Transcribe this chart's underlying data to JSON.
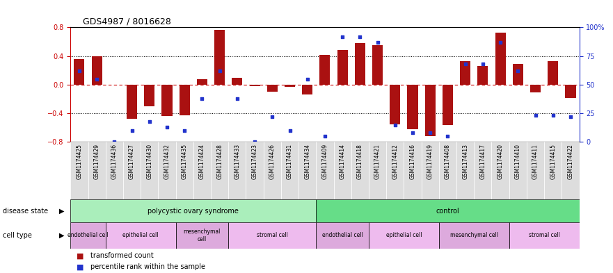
{
  "title": "GDS4987 / 8016628",
  "samples": [
    "GSM1174425",
    "GSM1174429",
    "GSM1174436",
    "GSM1174427",
    "GSM1174430",
    "GSM1174432",
    "GSM1174435",
    "GSM1174424",
    "GSM1174428",
    "GSM1174433",
    "GSM1174423",
    "GSM1174426",
    "GSM1174431",
    "GSM1174434",
    "GSM1174409",
    "GSM1174414",
    "GSM1174418",
    "GSM1174421",
    "GSM1174412",
    "GSM1174416",
    "GSM1174419",
    "GSM1174408",
    "GSM1174413",
    "GSM1174417",
    "GSM1174420",
    "GSM1174410",
    "GSM1174411",
    "GSM1174415",
    "GSM1174422"
  ],
  "bar_values": [
    0.36,
    0.4,
    0.0,
    -0.48,
    -0.3,
    -0.44,
    -0.43,
    0.08,
    0.76,
    0.1,
    -0.02,
    -0.1,
    -0.03,
    -0.14,
    0.42,
    0.48,
    0.58,
    0.55,
    -0.55,
    -0.62,
    -0.72,
    -0.56,
    0.33,
    0.26,
    0.73,
    0.29,
    -0.11,
    0.33,
    -0.19
  ],
  "scatter_values": [
    62,
    55,
    0,
    10,
    18,
    13,
    10,
    38,
    62,
    38,
    0,
    22,
    10,
    55,
    5,
    92,
    92,
    87,
    15,
    8,
    8,
    5,
    68,
    68,
    87,
    62,
    23,
    23,
    22
  ],
  "bar_color": "#aa1111",
  "scatter_color": "#2233cc",
  "ylim": [
    -0.8,
    0.8
  ],
  "yticks_left": [
    -0.8,
    -0.4,
    0.0,
    0.4,
    0.8
  ],
  "yticks_right": [
    0,
    25,
    50,
    75,
    100
  ],
  "disease_state_groups": [
    {
      "label": "polycystic ovary syndrome",
      "start": 0,
      "end": 14,
      "color": "#aaeebb"
    },
    {
      "label": "control",
      "start": 14,
      "end": 29,
      "color": "#66dd88"
    }
  ],
  "cell_type_groups": [
    {
      "label": "endothelial cell",
      "start": 0,
      "end": 2,
      "color": "#ddaadd"
    },
    {
      "label": "epithelial cell",
      "start": 2,
      "end": 6,
      "color": "#eebbee"
    },
    {
      "label": "mesenchymal\ncell",
      "start": 6,
      "end": 9,
      "color": "#ddaadd"
    },
    {
      "label": "stromal cell",
      "start": 9,
      "end": 14,
      "color": "#eebbee"
    },
    {
      "label": "endothelial cell",
      "start": 14,
      "end": 17,
      "color": "#ddaadd"
    },
    {
      "label": "epithelial cell",
      "start": 17,
      "end": 21,
      "color": "#eebbee"
    },
    {
      "label": "mesenchymal cell",
      "start": 21,
      "end": 25,
      "color": "#ddaadd"
    },
    {
      "label": "stromal cell",
      "start": 25,
      "end": 29,
      "color": "#eebbee"
    }
  ],
  "disease_label": "disease state",
  "cell_label": "cell type",
  "legend_bar": "transformed count",
  "legend_scatter": "percentile rank within the sample",
  "bg_color": "#ffffff",
  "plot_bg_color": "#ffffff",
  "xtick_bg_color": "#dddddd",
  "hline_color_zero": "#cc0000",
  "hline_color_dotted": "#000000",
  "dotted_levels": [
    -0.4,
    0.4
  ],
  "right_axis_color": "#2233cc",
  "left_axis_color": "#cc0000",
  "n_samples": 29
}
